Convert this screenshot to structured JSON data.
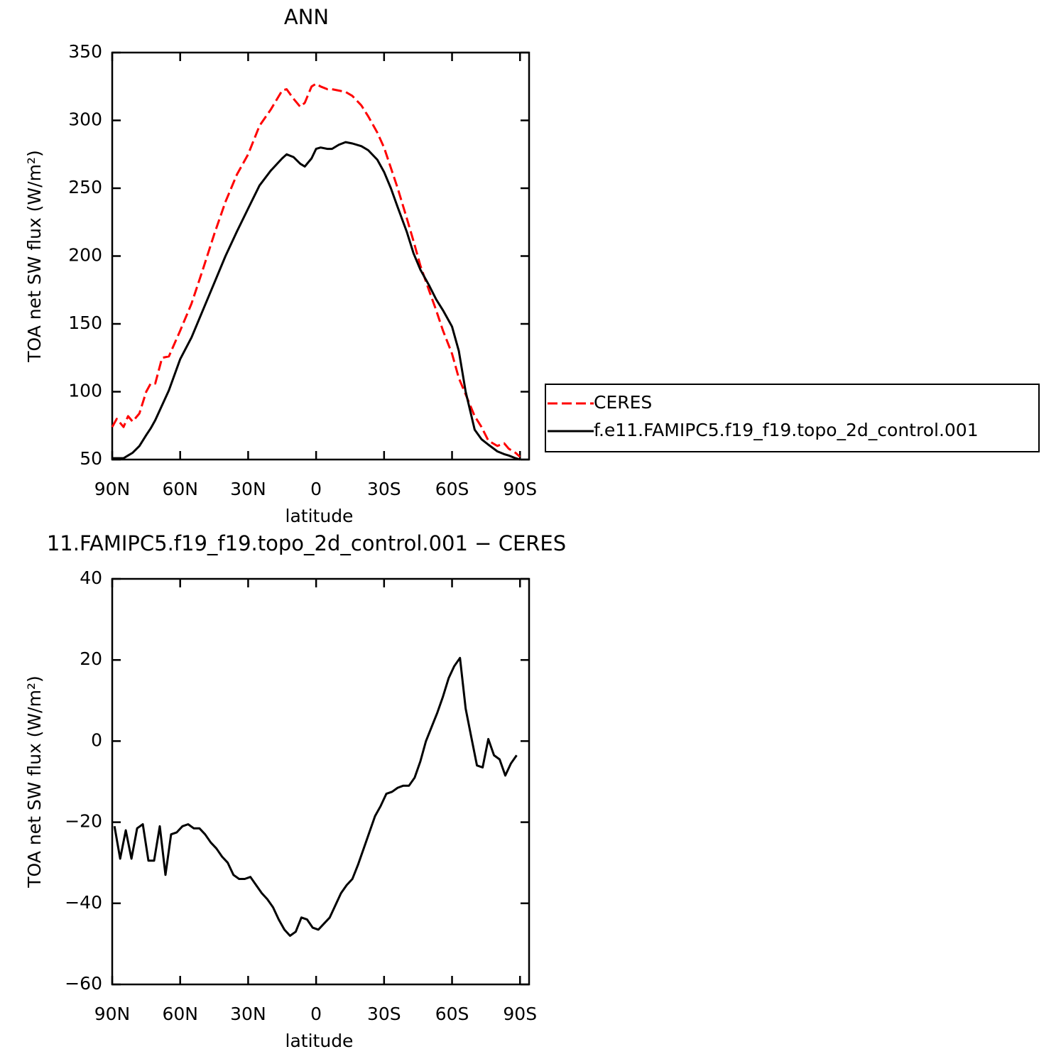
{
  "chart_data": [
    {
      "type": "line",
      "title": "ANN",
      "xlabel": "latitude",
      "ylabel": "TOA net SW flux (W/m²)",
      "x": [
        90,
        88,
        85,
        83,
        81,
        78,
        75,
        73,
        71,
        68,
        65,
        60,
        55,
        50,
        45,
        40,
        35,
        30,
        25,
        20,
        15,
        13,
        10,
        7,
        5,
        2,
        0,
        -2,
        -5,
        -7,
        -10,
        -13,
        -16,
        -20,
        -23,
        -27,
        -30,
        -33,
        -36,
        -40,
        -43,
        -46,
        -50,
        -53,
        -56,
        -60,
        -63,
        -66,
        -70,
        -73,
        -76,
        -80,
        -83,
        -85,
        -88,
        -90
      ],
      "xlim": [
        90,
        -94
      ],
      "xticks": [
        {
          "value": 90,
          "label": "90N"
        },
        {
          "value": 60,
          "label": "60N"
        },
        {
          "value": 30,
          "label": "30N"
        },
        0,
        {
          "value": -30,
          "label": "30S"
        },
        {
          "value": -60,
          "label": "60S"
        },
        {
          "value": -90,
          "label": "90S"
        }
      ],
      "ylim": [
        50,
        350
      ],
      "yticks": [
        50,
        100,
        150,
        200,
        250,
        300,
        350
      ],
      "series": [
        {
          "name": "CERES",
          "color": "#ff0000",
          "dashed": true,
          "values": [
            74,
            80,
            74,
            82,
            78,
            84,
            100,
            106,
            106,
            125,
            126,
            145,
            165,
            190,
            216,
            240,
            260,
            275,
            296,
            308,
            322,
            323,
            316,
            310,
            313,
            325,
            327,
            325,
            323,
            323,
            322,
            321,
            318,
            311,
            303,
            291,
            280,
            265,
            250,
            228,
            211,
            193,
            174,
            160,
            145,
            128,
            110,
            98,
            82,
            74,
            64,
            60,
            62,
            58,
            55,
            52
          ]
        },
        {
          "name": "f.e11.FAMIPC5.f19_f19.topo_2d_control.001",
          "color": "#000000",
          "dashed": false,
          "values": [
            51,
            51,
            51,
            53,
            55,
            60,
            68,
            73,
            79,
            90,
            101,
            124,
            140,
            160,
            180,
            200,
            218,
            235,
            252,
            263,
            272,
            275,
            273,
            268,
            266,
            272,
            279,
            280,
            279,
            279,
            282,
            284,
            283,
            281,
            278,
            271,
            262,
            250,
            236,
            218,
            202,
            190,
            178,
            168,
            160,
            148,
            130,
            100,
            72,
            65,
            61,
            56,
            54,
            53,
            51,
            50
          ]
        }
      ]
    },
    {
      "type": "line",
      "title": "11.FAMIPC5.f19_f19.topo_2d_control.001 − CERES",
      "xlabel": "latitude",
      "ylabel": "TOA net SW flux (W/m²)",
      "x": [
        89,
        86.5,
        84,
        81.5,
        79,
        76.5,
        74,
        71.5,
        69,
        66.5,
        64,
        61.5,
        59,
        56.5,
        54,
        51.5,
        49,
        46.5,
        44,
        41.5,
        39,
        36.5,
        34,
        31.5,
        29,
        26.5,
        24,
        21.5,
        19,
        16.5,
        14,
        11.5,
        9,
        6.5,
        4,
        1.5,
        -1,
        -3.5,
        -6,
        -8.5,
        -11,
        -13.5,
        -16,
        -18.5,
        -21,
        -23.5,
        -26,
        -28.5,
        -31,
        -33.5,
        -36,
        -38.5,
        -41,
        -43.5,
        -46,
        -48.5,
        -51,
        -53.5,
        -56,
        -58.5,
        -61,
        -63.5,
        -66,
        -68.5,
        -71,
        -73.5,
        -76,
        -78.5,
        -81,
        -83.5,
        -86,
        -88.5
      ],
      "xlim": [
        90,
        -94
      ],
      "xticks": [
        {
          "value": 90,
          "label": "90N"
        },
        {
          "value": 60,
          "label": "60N"
        },
        {
          "value": 30,
          "label": "30N"
        },
        0,
        {
          "value": -30,
          "label": "30S"
        },
        {
          "value": -60,
          "label": "60S"
        },
        {
          "value": -90,
          "label": "90S"
        }
      ],
      "ylim": [
        -60,
        40
      ],
      "yticks": [
        {
          "value": -60,
          "label": "−60"
        },
        {
          "value": -40,
          "label": "−40"
        },
        {
          "value": -20,
          "label": "−20"
        },
        0,
        20,
        40
      ],
      "series": [
        {
          "color": "#000000",
          "dashed": false,
          "values": [
            -21,
            -29,
            -22,
            -29,
            -21.5,
            -20.5,
            -29.5,
            -29.5,
            -21,
            -33,
            -23,
            -22.5,
            -21,
            -20.5,
            -21.5,
            -21.5,
            -23,
            -25,
            -26.5,
            -28.5,
            -30,
            -33,
            -34,
            -34,
            -33.5,
            -35.5,
            -37.5,
            -39,
            -41,
            -44,
            -46.5,
            -48,
            -47,
            -43.5,
            -44,
            -46,
            -46.5,
            -45,
            -43.5,
            -40.5,
            -37.5,
            -35.5,
            -34,
            -30.5,
            -26.5,
            -22.5,
            -18.5,
            -16,
            -13,
            -12.5,
            -11.5,
            -11,
            -11,
            -9,
            -5,
            0,
            3.5,
            7,
            11,
            15.5,
            18.5,
            20.5,
            8,
            1,
            -6,
            -6.5,
            0.5,
            -3.5,
            -4.5,
            -8.5,
            -5.5,
            -3.5
          ]
        }
      ]
    }
  ]
}
